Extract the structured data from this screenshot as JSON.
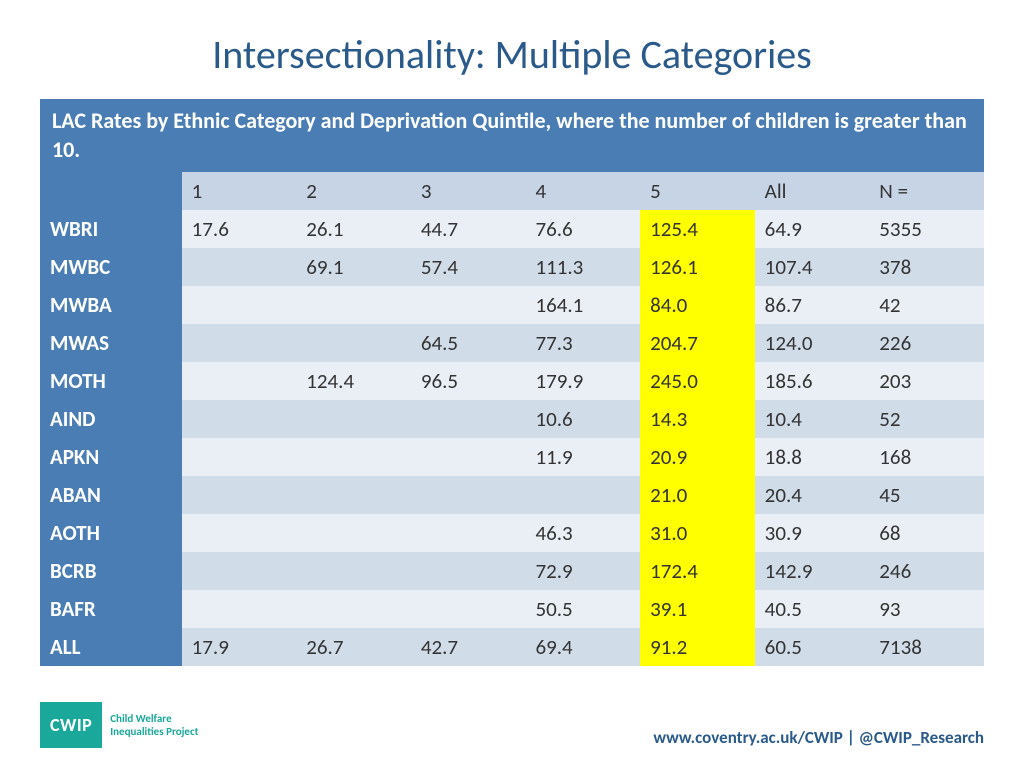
{
  "title": "Intersectionality: Multiple Categories",
  "caption": "LAC Rates by Ethnic Category and Deprivation Quintile, where the number of children is greater than 10.",
  "columns": [
    "",
    "1",
    "2",
    "3",
    "4",
    "5",
    "All",
    "N ="
  ],
  "highlight_col_index": 5,
  "rows": [
    {
      "label": "WBRI",
      "cells": [
        "17.6",
        "26.1",
        "44.7",
        "76.6",
        "125.4",
        "64.9",
        "5355"
      ]
    },
    {
      "label": "MWBC",
      "cells": [
        "",
        "69.1",
        "57.4",
        "111.3",
        "126.1",
        "107.4",
        "378"
      ]
    },
    {
      "label": "MWBA",
      "cells": [
        "",
        "",
        "",
        "164.1",
        "84.0",
        "86.7",
        "42"
      ]
    },
    {
      "label": "MWAS",
      "cells": [
        "",
        "",
        "64.5",
        "77.3",
        "204.7",
        "124.0",
        "226"
      ]
    },
    {
      "label": "MOTH",
      "cells": [
        "",
        "124.4",
        "96.5",
        "179.9",
        "245.0",
        "185.6",
        "203"
      ]
    },
    {
      "label": "AIND",
      "cells": [
        "",
        "",
        "",
        "10.6",
        "14.3",
        "10.4",
        "52"
      ]
    },
    {
      "label": "APKN",
      "cells": [
        "",
        "",
        "",
        "11.9",
        "20.9",
        "18.8",
        "168"
      ]
    },
    {
      "label": "ABAN",
      "cells": [
        "",
        "",
        "",
        "",
        "21.0",
        "20.4",
        "45"
      ]
    },
    {
      "label": "AOTH",
      "cells": [
        "",
        "",
        "",
        "46.3",
        "31.0",
        "30.9",
        "68"
      ]
    },
    {
      "label": "BCRB",
      "cells": [
        "",
        "",
        "",
        "72.9",
        "172.4",
        "142.9",
        "246"
      ]
    },
    {
      "label": "BAFR",
      "cells": [
        "",
        "",
        "",
        "50.5",
        "39.1",
        "40.5",
        "93"
      ]
    },
    {
      "label": "ALL",
      "cells": [
        "17.9",
        "26.7",
        "42.7",
        "69.4",
        "91.2",
        "60.5",
        "7138"
      ]
    }
  ],
  "logo": {
    "abbrev": "CWIP",
    "line1": "Child Welfare",
    "line2": "Inequalities Project"
  },
  "footer_link": "www.coventry.ac.uk/CWIP | @CWIP_Research",
  "colors": {
    "title": "#2a5a8a",
    "header_bg": "#4a7db3",
    "band_a": "#eaeff6",
    "band_b": "#d1dce9",
    "col_header_bg": "#c6d4e6",
    "highlight": "#ffff00",
    "logo": "#1aa89a"
  }
}
